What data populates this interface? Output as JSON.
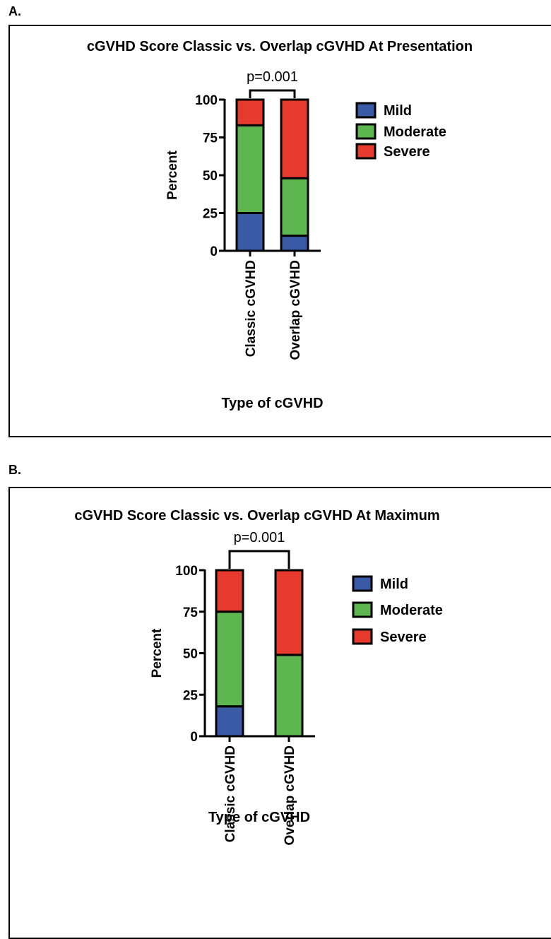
{
  "panels": [
    {
      "letter": "A.",
      "chart_data": {
        "type": "bar",
        "stacked": true,
        "title": "cGVHD Score Classic vs. Overlap cGVHD At Presentation",
        "xlabel": "Type of cGVHD",
        "ylabel": "Percent",
        "ylim": [
          0,
          100
        ],
        "yticks": [
          "0",
          "25",
          "50",
          "75",
          "100"
        ],
        "categories": [
          "Classic cGVHD",
          "Overlap cGVHD"
        ],
        "series": [
          {
            "name": "Mild",
            "color": "#3b5aa6",
            "values": [
              25,
              10
            ]
          },
          {
            "name": "Moderate",
            "color": "#5db64f",
            "values": [
              58,
              38
            ]
          },
          {
            "name": "Severe",
            "color": "#e63a2e",
            "values": [
              17,
              52
            ]
          }
        ],
        "annotation": "p=0.001",
        "legend": "right",
        "grid": false
      }
    },
    {
      "letter": "B.",
      "chart_data": {
        "type": "bar",
        "stacked": true,
        "title": "cGVHD Score Classic vs. Overlap cGVHD At Maximum",
        "xlabel": "Type of cGVHD",
        "ylabel": "Percent",
        "ylim": [
          0,
          100
        ],
        "yticks": [
          "0",
          "25",
          "50",
          "75",
          "100"
        ],
        "categories": [
          "Classic cGVHD",
          "Overlap cGVHD"
        ],
        "series": [
          {
            "name": "Mild",
            "color": "#3b5aa6",
            "values": [
              18,
              0
            ]
          },
          {
            "name": "Moderate",
            "color": "#5db64f",
            "values": [
              57,
              49
            ]
          },
          {
            "name": "Severe",
            "color": "#e63a2e",
            "values": [
              25,
              51
            ]
          }
        ],
        "annotation": "p=0.001",
        "legend": "right",
        "grid": false
      }
    }
  ]
}
